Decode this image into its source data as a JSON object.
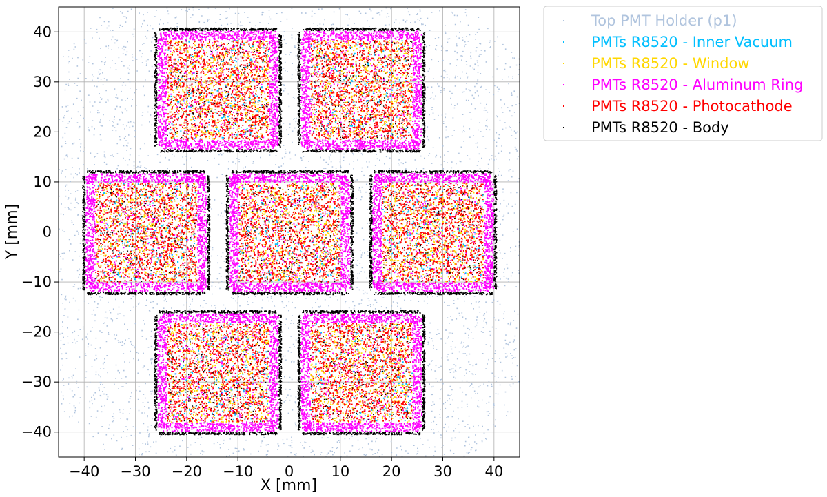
{
  "chart_data": {
    "type": "scatter",
    "title": "",
    "xlabel": "X [mm]",
    "ylabel": "Y [mm]",
    "xlim": [
      -45,
      45
    ],
    "ylim": [
      -45,
      45
    ],
    "grid": true,
    "legend_position": "outside-top-right",
    "x_ticks": [
      -40,
      -30,
      -20,
      -10,
      0,
      10,
      20,
      30,
      40
    ],
    "y_ticks": [
      -40,
      -30,
      -20,
      -10,
      0,
      10,
      20,
      30,
      40
    ],
    "x_tick_labels": [
      "−40",
      "−30",
      "−20",
      "−10",
      "0",
      "10",
      "20",
      "30",
      "40"
    ],
    "y_tick_labels": [
      "−40",
      "−30",
      "−20",
      "−10",
      "0",
      "10",
      "20",
      "30",
      "40"
    ],
    "holder": {
      "name": "Top PMT Holder (p1)",
      "color": "#b0c4de",
      "shape": "octagon",
      "extent": 45
    },
    "pmt_centers": [
      [
        -14,
        28.5
      ],
      [
        14,
        28.5
      ],
      [
        -28,
        0
      ],
      [
        0,
        0
      ],
      [
        28,
        0
      ],
      [
        -14,
        -28
      ],
      [
        14,
        -28
      ]
    ],
    "pmt_half_width": 12.7,
    "series": [
      {
        "name": "Top PMT Holder (p1)",
        "color": "#b0c4de"
      },
      {
        "name": "PMTs R8520 - Inner Vacuum",
        "color": "#00bfff"
      },
      {
        "name": "PMTs R8520 - Window",
        "color": "#ffd700"
      },
      {
        "name": "PMTs R8520 - Aluminum Ring",
        "color": "#ff00ff"
      },
      {
        "name": "PMTs R8520 - Photocathode",
        "color": "#ff0000"
      },
      {
        "name": "PMTs R8520 - Body",
        "color": "#000000"
      }
    ]
  }
}
